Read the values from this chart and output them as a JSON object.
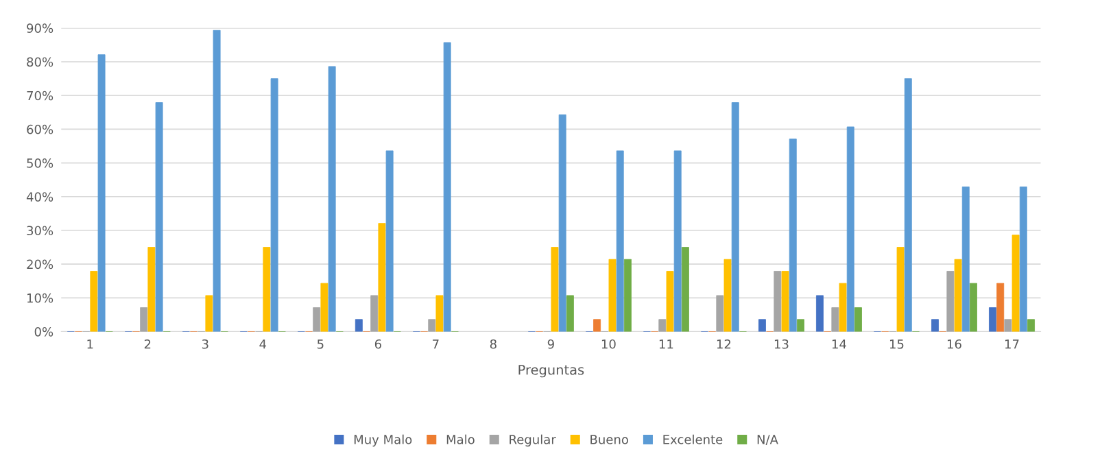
{
  "chart_data": {
    "type": "bar",
    "xlabel": "Preguntas",
    "categories": [
      "1",
      "2",
      "3",
      "4",
      "5",
      "6",
      "7",
      "8",
      "9",
      "10",
      "11",
      "12",
      "13",
      "14",
      "15",
      "16",
      "17"
    ],
    "series": [
      {
        "name": "Muy Malo",
        "color": "#4472c4",
        "values": [
          0,
          0,
          0,
          0,
          0,
          3.6,
          0,
          null,
          0,
          0,
          0,
          0,
          3.6,
          10.7,
          0,
          3.6,
          7.1
        ]
      },
      {
        "name": "Malo",
        "color": "#ed7d31",
        "values": [
          0,
          0,
          0,
          0,
          0,
          0,
          0,
          null,
          0,
          3.6,
          0,
          0,
          0,
          0,
          0,
          0,
          14.3
        ]
      },
      {
        "name": "Regular",
        "color": "#a5a5a5",
        "values": [
          0,
          7.1,
          0,
          0,
          7.1,
          10.7,
          3.6,
          null,
          0,
          0,
          3.6,
          10.7,
          17.9,
          7.1,
          0,
          17.9,
          3.6
        ]
      },
      {
        "name": "Bueno",
        "color": "#ffc000",
        "values": [
          17.9,
          25,
          10.7,
          25,
          14.3,
          32.1,
          10.7,
          null,
          25,
          21.4,
          17.9,
          21.4,
          17.9,
          14.3,
          25,
          21.4,
          28.6
        ]
      },
      {
        "name": "Excelente",
        "color": "#5b9bd5",
        "values": [
          82.1,
          67.9,
          89.3,
          75,
          78.6,
          53.6,
          85.7,
          null,
          64.3,
          53.6,
          53.6,
          67.9,
          57.1,
          60.7,
          75,
          42.9,
          42.9
        ]
      },
      {
        "name": "N/A",
        "color": "#70ad47",
        "values": [
          0,
          0,
          0,
          0,
          0,
          0,
          0,
          null,
          10.7,
          21.4,
          25,
          0,
          3.6,
          7.1,
          0,
          14.3,
          3.6
        ]
      }
    ],
    "ylim": [
      0,
      90
    ],
    "yticks": [
      {
        "value": 0,
        "label": "0%"
      },
      {
        "value": 10,
        "label": "10%"
      },
      {
        "value": 20,
        "label": "20%"
      },
      {
        "value": 30,
        "label": "30%"
      },
      {
        "value": 40,
        "label": "40%"
      },
      {
        "value": 50,
        "label": "50%"
      },
      {
        "value": 60,
        "label": "60%"
      },
      {
        "value": 70,
        "label": "70%"
      },
      {
        "value": 80,
        "label": "80%"
      },
      {
        "value": 90,
        "label": "90%"
      }
    ],
    "grid": "y",
    "legend": "bottom"
  }
}
